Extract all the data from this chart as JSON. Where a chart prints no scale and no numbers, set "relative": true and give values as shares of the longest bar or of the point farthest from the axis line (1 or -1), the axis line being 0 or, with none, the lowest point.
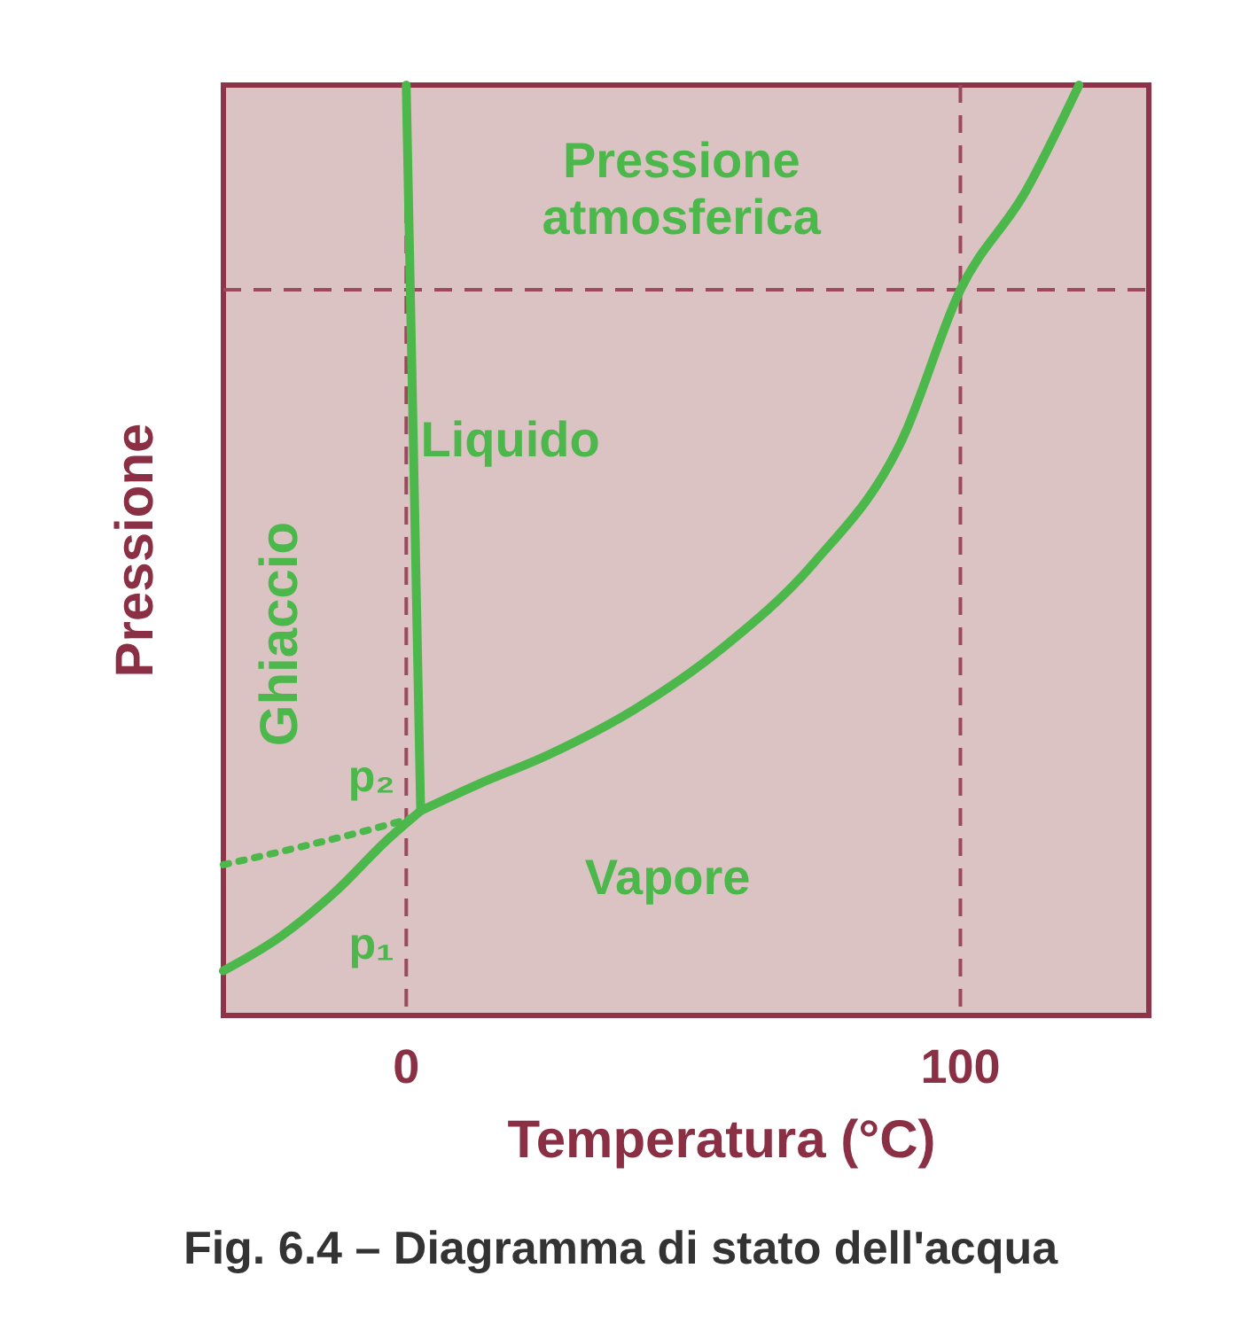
{
  "chart_data": {
    "type": "line",
    "title": "Fig. 6.4 – Diagramma di stato dell'acqua",
    "xlabel": "Temperatura (°C)",
    "ylabel": "Pressione",
    "relative": true,
    "xlim": [
      -33,
      134
    ],
    "xticks": [
      0,
      100
    ],
    "grid": false,
    "line_style": "solid",
    "series": [
      {
        "color": "#4cb84c",
        "x": [
          2.6,
          0
        ],
        "values": [
          0.22,
          1.0
        ]
      },
      {
        "color": "#4cb84c",
        "x": [
          2.6,
          12.8,
          25.6,
          41.5,
          57.5,
          73.5,
          89.5,
          100,
          111.8,
          121.4
        ],
        "values": [
          0.22,
          0.248,
          0.28,
          0.33,
          0.397,
          0.486,
          0.619,
          0.78,
          0.886,
          1.0
        ]
      },
      {
        "color": "#4cb84c",
        "x": [
          -33,
          -22.4,
          -12.8,
          -3.2,
          2.6
        ],
        "values": [
          0.048,
          0.086,
          0.133,
          0.19,
          0.22
        ]
      },
      {
        "color": "#4cb84c",
        "x": [
          -33,
          -19.2,
          -6.4,
          2.6
        ],
        "values": [
          0.162,
          0.181,
          0.2,
          0.215
        ],
        "line_style": "dotted"
      }
    ],
    "ref_lines": [
      {
        "axis": "x",
        "value": 0,
        "color": "#9a4a5a",
        "line_style": "dashed"
      },
      {
        "axis": "x",
        "value": 100,
        "color": "#9a4a5a",
        "line_style": "dashed"
      },
      {
        "axis": "y",
        "value": 0.78,
        "color": "#9a4a5a",
        "line_style": "dashed"
      }
    ],
    "annotations": [
      "Pressione\natmosferica",
      "Liquido",
      "Ghiaccio",
      "Vapore",
      "p₂",
      "p₁"
    ]
  }
}
